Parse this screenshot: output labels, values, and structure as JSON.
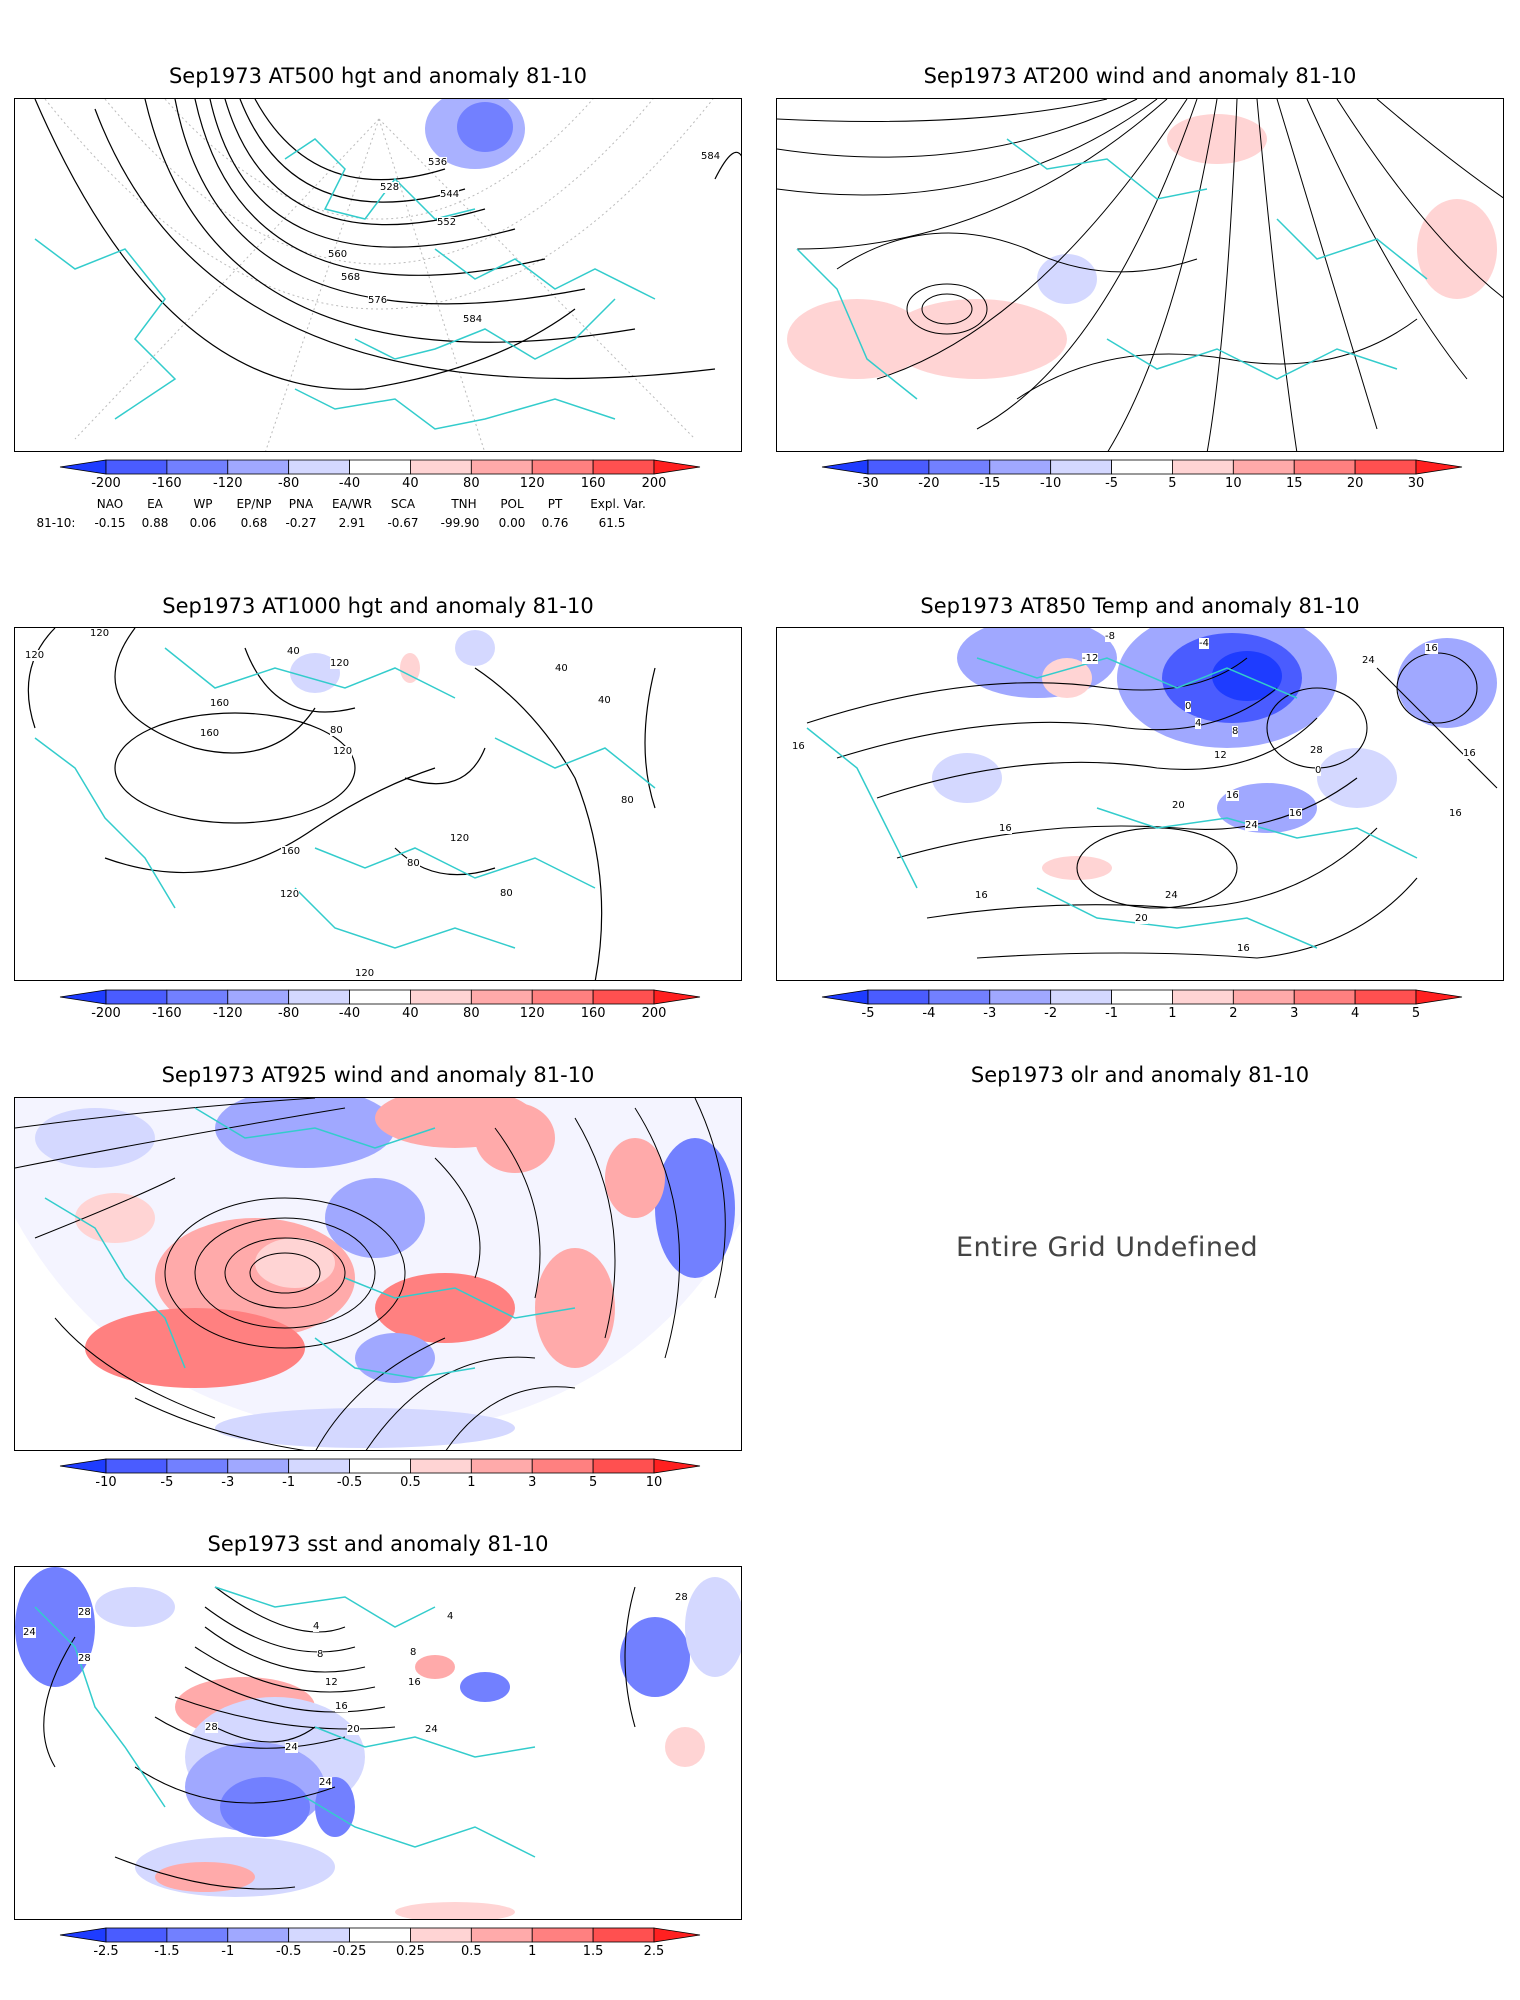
{
  "panels": {
    "p1": {
      "title": "Sep1973 AT500 hgt and anomaly 81-10",
      "contour_labels": [
        "528",
        "536",
        "544",
        "552",
        "560",
        "568",
        "576",
        "584",
        "584"
      ]
    },
    "p2": {
      "title": "Sep1973 AT200 wind and anomaly 81-10"
    },
    "p3": {
      "title": "Sep1973 AT1000 hgt and anomaly 81-10",
      "contour_labels": [
        "120",
        "120",
        "40",
        "120",
        "160",
        "160",
        "80",
        "120",
        "40",
        "40",
        "80",
        "160",
        "120",
        "80",
        "80",
        "120",
        "120"
      ]
    },
    "p4": {
      "title": "Sep1973 AT850 Temp and anomaly 81-10",
      "contour_labels": [
        "-8",
        "-12",
        "-4",
        "0",
        "4",
        "8",
        "12",
        "16",
        "20",
        "24",
        "28",
        "24",
        "16",
        "16",
        "16",
        "16",
        "20",
        "24",
        "16",
        "16",
        "0",
        "16",
        "16"
      ]
    },
    "p5": {
      "title": "Sep1973 AT925 wind and anomaly 81-10"
    },
    "p6": {
      "title": "Sep1973 olr and anomaly 81-10",
      "message": "Entire Grid Undefined"
    },
    "p7": {
      "title": "Sep1973 sst and anomaly 81-10",
      "contour_labels": [
        "24",
        "28",
        "28",
        "4",
        "8",
        "12",
        "16",
        "20",
        "24",
        "28",
        "24",
        "8",
        "16",
        "4",
        "28",
        "24"
      ]
    }
  },
  "colorbars": {
    "hgt500": [
      "-200",
      "-160",
      "-120",
      "-80",
      "-40",
      "40",
      "80",
      "120",
      "160",
      "200"
    ],
    "wind200": [
      "-30",
      "-20",
      "-15",
      "-10",
      "-5",
      "5",
      "10",
      "15",
      "20",
      "30"
    ],
    "hgt1000": [
      "-200",
      "-160",
      "-120",
      "-80",
      "-40",
      "40",
      "80",
      "120",
      "160",
      "200"
    ],
    "temp850": [
      "-5",
      "-4",
      "-3",
      "-2",
      "-1",
      "1",
      "2",
      "3",
      "4",
      "5"
    ],
    "wind925": [
      "-10",
      "-5",
      "-3",
      "-1",
      "-0.5",
      "0.5",
      "1",
      "3",
      "5",
      "10"
    ],
    "sst": [
      "-2.5",
      "-1.5",
      "-1",
      "-0.5",
      "-0.25",
      "0.25",
      "0.5",
      "1",
      "1.5",
      "2.5"
    ]
  },
  "colors": {
    "blues": [
      "#1e3cff",
      "#4a5cff",
      "#7280ff",
      "#a0a8ff",
      "#d4d8ff"
    ],
    "reds": [
      "#ffd4d4",
      "#ffaaaa",
      "#ff8080",
      "#ff5050",
      "#ff2020"
    ],
    "coast": "#33cccc"
  },
  "indices": {
    "row_label": "81-10:",
    "headers": [
      "NAO",
      "EA",
      "WP",
      "EP/NP",
      "PNA",
      "EA/WR",
      "SCA",
      "TNH",
      "POL",
      "PT",
      "Expl. Var."
    ],
    "values": [
      "-0.15",
      "0.88",
      "0.06",
      "0.68",
      "-0.27",
      "2.91",
      "-0.67",
      "-99.90",
      "0.00",
      "0.76",
      "61.5"
    ]
  }
}
